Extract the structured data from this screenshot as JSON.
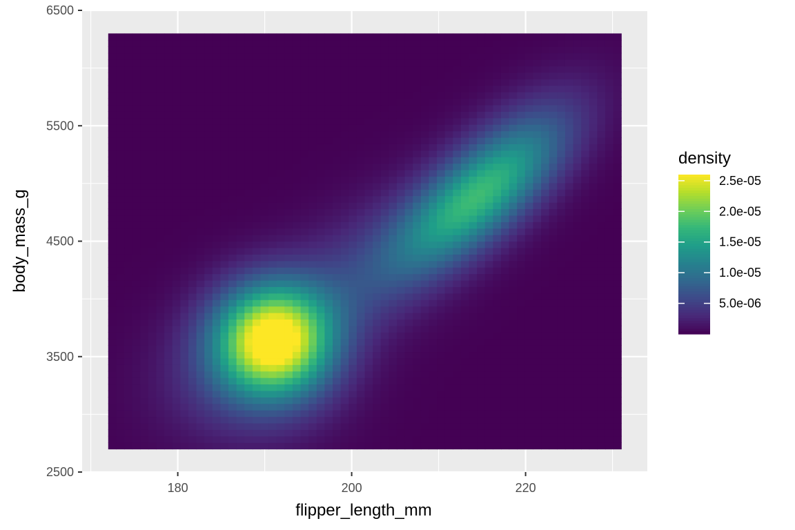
{
  "chart_data": {
    "type": "heatmap",
    "title": "",
    "xlabel": "flipper_length_mm",
    "ylabel": "body_mass_g",
    "xlim": [
      169,
      234
    ],
    "ylim": [
      2500,
      6500
    ],
    "x_ticks": [
      180,
      200,
      220
    ],
    "y_ticks": [
      2500,
      3500,
      4500,
      5500,
      6500
    ],
    "x_tick_labels": [
      "180",
      "200",
      "220"
    ],
    "y_tick_labels": [
      "2500",
      "3500",
      "4500",
      "5500",
      "6500"
    ],
    "data_extent": {
      "x": [
        172,
        231
      ],
      "y": [
        2700,
        6300
      ]
    },
    "grid": true,
    "colormap": "viridis",
    "density_peaks": [
      {
        "x": 191,
        "y": 3650,
        "density": 2.5e-05
      },
      {
        "x": 214,
        "y": 4850,
        "density": 1.4e-05
      }
    ],
    "legend": {
      "title": "density",
      "position": "right",
      "range": [
        0,
        2.6e-05
      ],
      "breaks": [
        5e-06,
        1e-05,
        1.5e-05,
        2e-05,
        2.5e-05
      ],
      "labels": [
        "5.0e-06",
        "1.0e-05",
        "1.5e-05",
        "2.0e-05",
        "2.5e-05"
      ]
    },
    "panel_background": "#ebebeb",
    "grid_color": "#ffffff"
  }
}
